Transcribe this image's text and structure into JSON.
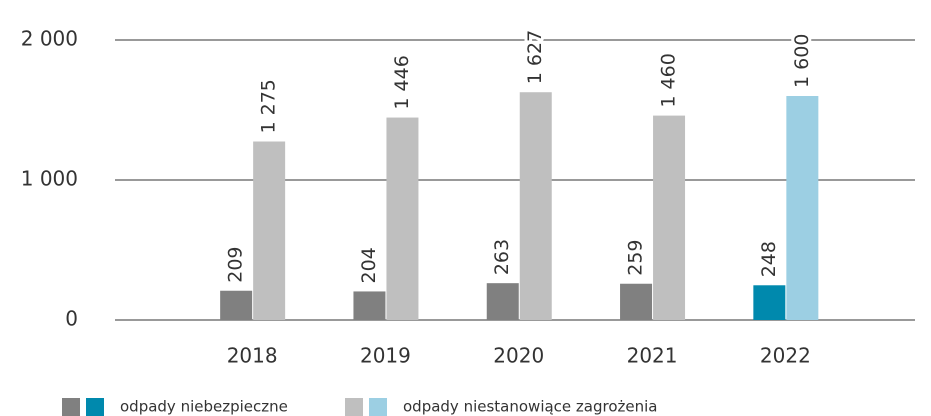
{
  "chart_data": {
    "type": "bar",
    "categories": [
      "2018",
      "2019",
      "2020",
      "2021",
      "2022"
    ],
    "series": [
      {
        "name": "odpady niebezpieczne",
        "colors": [
          "#808080",
          "#808080",
          "#808080",
          "#808080",
          "#0089ad"
        ],
        "values": [
          209,
          204,
          263,
          259,
          248
        ],
        "value_labels": [
          "209",
          "204",
          "263",
          "259",
          "248"
        ]
      },
      {
        "name": "odpady niestanowiące zagrożenia",
        "colors": [
          "#bfbfbf",
          "#bfbfbf",
          "#bfbfbf",
          "#bfbfbf",
          "#9ccfe3"
        ],
        "values": [
          1275,
          1446,
          1627,
          1460,
          1600
        ],
        "value_labels": [
          "1 275",
          "1 446",
          "1 627",
          "1 460",
          "1 600"
        ]
      }
    ],
    "ylim": [
      0,
      2000
    ],
    "yticks": [
      0,
      {
        "value": 1000,
        "label": "1 000"
      },
      {
        "value": 2000,
        "label": "2 000"
      }
    ],
    "grid": true,
    "legend": "bottom"
  }
}
